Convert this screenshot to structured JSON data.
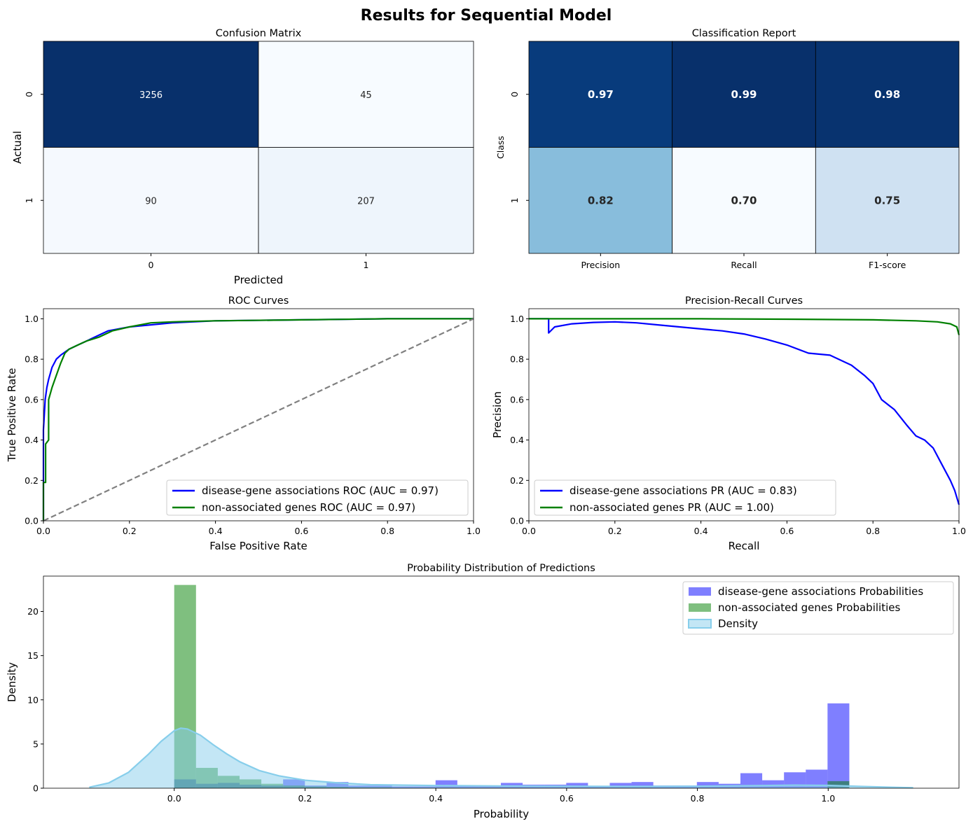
{
  "figure_title": "Results for Sequential Model",
  "chart_data": [
    {
      "id": "confusion",
      "type": "heatmap",
      "title": "Confusion Matrix",
      "xlabel": "Predicted",
      "ylabel": "Actual",
      "x_ticks": [
        "0",
        "1"
      ],
      "y_ticks": [
        "0",
        "1"
      ],
      "cells": [
        [
          3256,
          45
        ],
        [
          90,
          207
        ]
      ],
      "cell_labels": [
        [
          "3256",
          "45"
        ],
        [
          "90",
          "207"
        ]
      ],
      "cell_colors": [
        [
          "#08306b",
          "#f7fbff"
        ],
        [
          "#f5f9fe",
          "#eef5fc"
        ]
      ],
      "cell_text_colors": [
        [
          "#ffffff",
          "#262626"
        ],
        [
          "#262626",
          "#262626"
        ]
      ]
    },
    {
      "id": "report",
      "type": "heatmap",
      "title": "Classification Report",
      "xlabel": "",
      "ylabel": "Class",
      "x_ticks": [
        "Precision",
        "Recall",
        "F1-score"
      ],
      "y_ticks": [
        "0",
        "1"
      ],
      "cells": [
        [
          0.97,
          0.99,
          0.98
        ],
        [
          0.82,
          0.7,
          0.75
        ]
      ],
      "cell_labels": [
        [
          "0.97",
          "0.99",
          "0.98"
        ],
        [
          "0.82",
          "0.70",
          "0.75"
        ]
      ],
      "cell_colors": [
        [
          "#083b7c",
          "#08306b",
          "#08336f"
        ],
        [
          "#88bddc",
          "#f7fbff",
          "#cfe1f2"
        ]
      ],
      "cell_text_colors": [
        [
          "#ffffff",
          "#ffffff",
          "#ffffff"
        ],
        [
          "#262626",
          "#262626",
          "#262626"
        ]
      ]
    },
    {
      "id": "roc",
      "type": "line",
      "title": "ROC Curves",
      "xlabel": "False Positive Rate",
      "ylabel": "True Positive Rate",
      "xlim": [
        0,
        1
      ],
      "ylim": [
        0,
        1.05
      ],
      "x_ticks": [
        "0.0",
        "0.2",
        "0.4",
        "0.6",
        "0.8",
        "1.0"
      ],
      "y_ticks": [
        "0.0",
        "0.2",
        "0.4",
        "0.6",
        "0.8",
        "1.0"
      ],
      "legend_position": "lower-right",
      "series": [
        {
          "name": "disease-gene associations ROC (AUC = 0.97)",
          "color": "#0000ff",
          "x": [
            0,
            0,
            0.004,
            0.008,
            0.012,
            0.02,
            0.03,
            0.04,
            0.06,
            0.08,
            0.1,
            0.12,
            0.15,
            0.2,
            0.3,
            0.4,
            0.6,
            0.8,
            1.0
          ],
          "y": [
            0,
            0.45,
            0.6,
            0.66,
            0.7,
            0.76,
            0.8,
            0.82,
            0.85,
            0.87,
            0.89,
            0.91,
            0.94,
            0.96,
            0.98,
            0.99,
            0.995,
            1.0,
            1.0
          ]
        },
        {
          "name": "non-associated genes ROC (AUC = 0.97)",
          "color": "#008000",
          "x": [
            0,
            0,
            0.005,
            0.005,
            0.012,
            0.012,
            0.02,
            0.03,
            0.04,
            0.05,
            0.06,
            0.08,
            0.1,
            0.13,
            0.16,
            0.2,
            0.25,
            0.3,
            0.4,
            0.6,
            0.8,
            1.0
          ],
          "y": [
            0,
            0.19,
            0.19,
            0.38,
            0.4,
            0.6,
            0.66,
            0.72,
            0.78,
            0.83,
            0.85,
            0.87,
            0.89,
            0.91,
            0.94,
            0.96,
            0.98,
            0.985,
            0.99,
            0.995,
            1.0,
            1.0
          ]
        },
        {
          "name": "chance",
          "color": "#808080",
          "dashed": true,
          "legend": false,
          "x": [
            0,
            1
          ],
          "y": [
            0,
            1
          ]
        }
      ]
    },
    {
      "id": "pr",
      "type": "line",
      "title": "Precision-Recall Curves",
      "xlabel": "Recall",
      "ylabel": "Precision",
      "xlim": [
        0,
        1
      ],
      "ylim": [
        0,
        1.05
      ],
      "x_ticks": [
        "0.0",
        "0.2",
        "0.4",
        "0.6",
        "0.8",
        "1.0"
      ],
      "y_ticks": [
        "0.0",
        "0.2",
        "0.4",
        "0.6",
        "0.8",
        "1.0"
      ],
      "legend_position": "lower-left",
      "series": [
        {
          "name": "disease-gene associations PR (AUC = 0.83)",
          "color": "#0000ff",
          "x": [
            0,
            0.046,
            0.046,
            0.06,
            0.1,
            0.15,
            0.2,
            0.25,
            0.3,
            0.35,
            0.4,
            0.45,
            0.5,
            0.55,
            0.6,
            0.65,
            0.7,
            0.75,
            0.78,
            0.8,
            0.82,
            0.85,
            0.88,
            0.9,
            0.92,
            0.94,
            0.96,
            0.98,
            0.99,
            1.0
          ],
          "y": [
            1.0,
            1.0,
            0.93,
            0.96,
            0.975,
            0.982,
            0.985,
            0.98,
            0.97,
            0.96,
            0.95,
            0.94,
            0.925,
            0.9,
            0.87,
            0.83,
            0.82,
            0.77,
            0.72,
            0.68,
            0.6,
            0.55,
            0.47,
            0.42,
            0.4,
            0.36,
            0.28,
            0.2,
            0.15,
            0.08
          ]
        },
        {
          "name": "non-associated genes PR (AUC = 1.00)",
          "color": "#008000",
          "x": [
            0,
            0.2,
            0.4,
            0.6,
            0.8,
            0.9,
            0.95,
            0.98,
            0.995,
            1.0
          ],
          "y": [
            1.0,
            1.0,
            1.0,
            0.998,
            0.995,
            0.99,
            0.985,
            0.975,
            0.96,
            0.92
          ]
        }
      ]
    },
    {
      "id": "prob",
      "type": "bar",
      "title": "Probability Distribution of Predictions",
      "xlabel": "Probability",
      "ylabel": "Density",
      "xlim": [
        -0.2,
        1.2
      ],
      "ylim": [
        0,
        24
      ],
      "x_tick_values": [
        0.0,
        0.2,
        0.4,
        0.6,
        0.8,
        1.0
      ],
      "x_ticks": [
        "0.0",
        "0.2",
        "0.4",
        "0.6",
        "0.8",
        "1.0"
      ],
      "y_tick_values": [
        0,
        5,
        10,
        15,
        20
      ],
      "y_ticks": [
        "0",
        "5",
        "10",
        "15",
        "20"
      ],
      "bin_width": 0.0333,
      "legend_position": "top-right",
      "series": [
        {
          "name": "disease-gene associations Probabilities",
          "color": "#0000ff",
          "opacity": 0.5,
          "bins_start": 0.0,
          "values": [
            1.0,
            0.5,
            0.6,
            0.4,
            0.3,
            1.0,
            0.3,
            0.7,
            0.3,
            0.3,
            0.2,
            0.2,
            0.9,
            0.2,
            0.3,
            0.6,
            0.4,
            0.4,
            0.6,
            0.2,
            0.6,
            0.7,
            0.3,
            0.3,
            0.7,
            0.5,
            1.7,
            0.9,
            1.8,
            2.1,
            9.6
          ]
        },
        {
          "name": "non-associated genes Probabilities",
          "color": "#008000",
          "opacity": 0.5,
          "bins_start": 0.0,
          "values": [
            23.0,
            2.3,
            1.4,
            1.0,
            0.5,
            0.3,
            0.2,
            0.15,
            0.1,
            0.1,
            0.05,
            0.05,
            0.05,
            0.05,
            0.05,
            0.05,
            0.05,
            0.05,
            0.05,
            0.05,
            0.05,
            0.05,
            0.05,
            0.05,
            0.05,
            0.05,
            0.05,
            0.05,
            0.05,
            0.05,
            0.8
          ]
        },
        {
          "name": "Density",
          "type": "area",
          "color": "#87ceeb",
          "x": [
            -0.13,
            -0.1,
            -0.07,
            -0.04,
            -0.02,
            0.0,
            0.01,
            0.02,
            0.04,
            0.06,
            0.08,
            0.1,
            0.13,
            0.16,
            0.2,
            0.25,
            0.3,
            0.4,
            0.5,
            0.6,
            0.7,
            0.8,
            0.9,
            0.95,
            1.0,
            1.05,
            1.13
          ],
          "y": [
            0.1,
            0.6,
            1.8,
            3.8,
            5.3,
            6.5,
            6.8,
            6.7,
            6.0,
            4.9,
            3.9,
            3.0,
            2.0,
            1.4,
            0.9,
            0.6,
            0.4,
            0.3,
            0.25,
            0.22,
            0.2,
            0.22,
            0.3,
            0.35,
            0.32,
            0.2,
            0.05
          ]
        }
      ]
    }
  ]
}
